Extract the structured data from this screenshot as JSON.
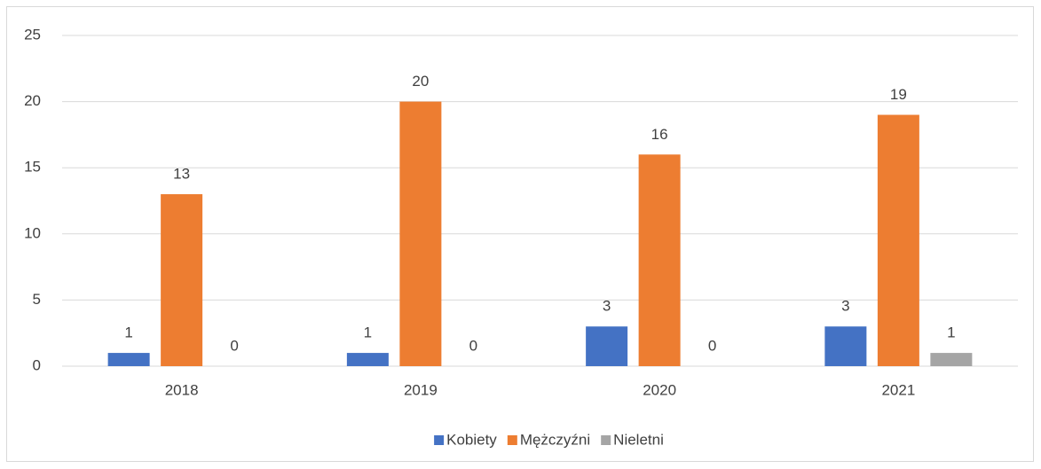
{
  "chart_data": {
    "type": "bar",
    "categories": [
      "2018",
      "2019",
      "2020",
      "2021"
    ],
    "series": [
      {
        "name": "Kobiety",
        "color": "#4472c4",
        "values": [
          1,
          1,
          3,
          3
        ]
      },
      {
        "name": "Mężczyźni",
        "color": "#ed7d31",
        "values": [
          13,
          20,
          16,
          19
        ]
      },
      {
        "name": "Nieletni",
        "color": "#a5a5a5",
        "values": [
          0,
          0,
          0,
          1
        ]
      }
    ],
    "ylim": [
      0,
      25
    ],
    "yticks": [
      0,
      5,
      10,
      15,
      20,
      25
    ],
    "grid": true,
    "legend": "bottom"
  }
}
